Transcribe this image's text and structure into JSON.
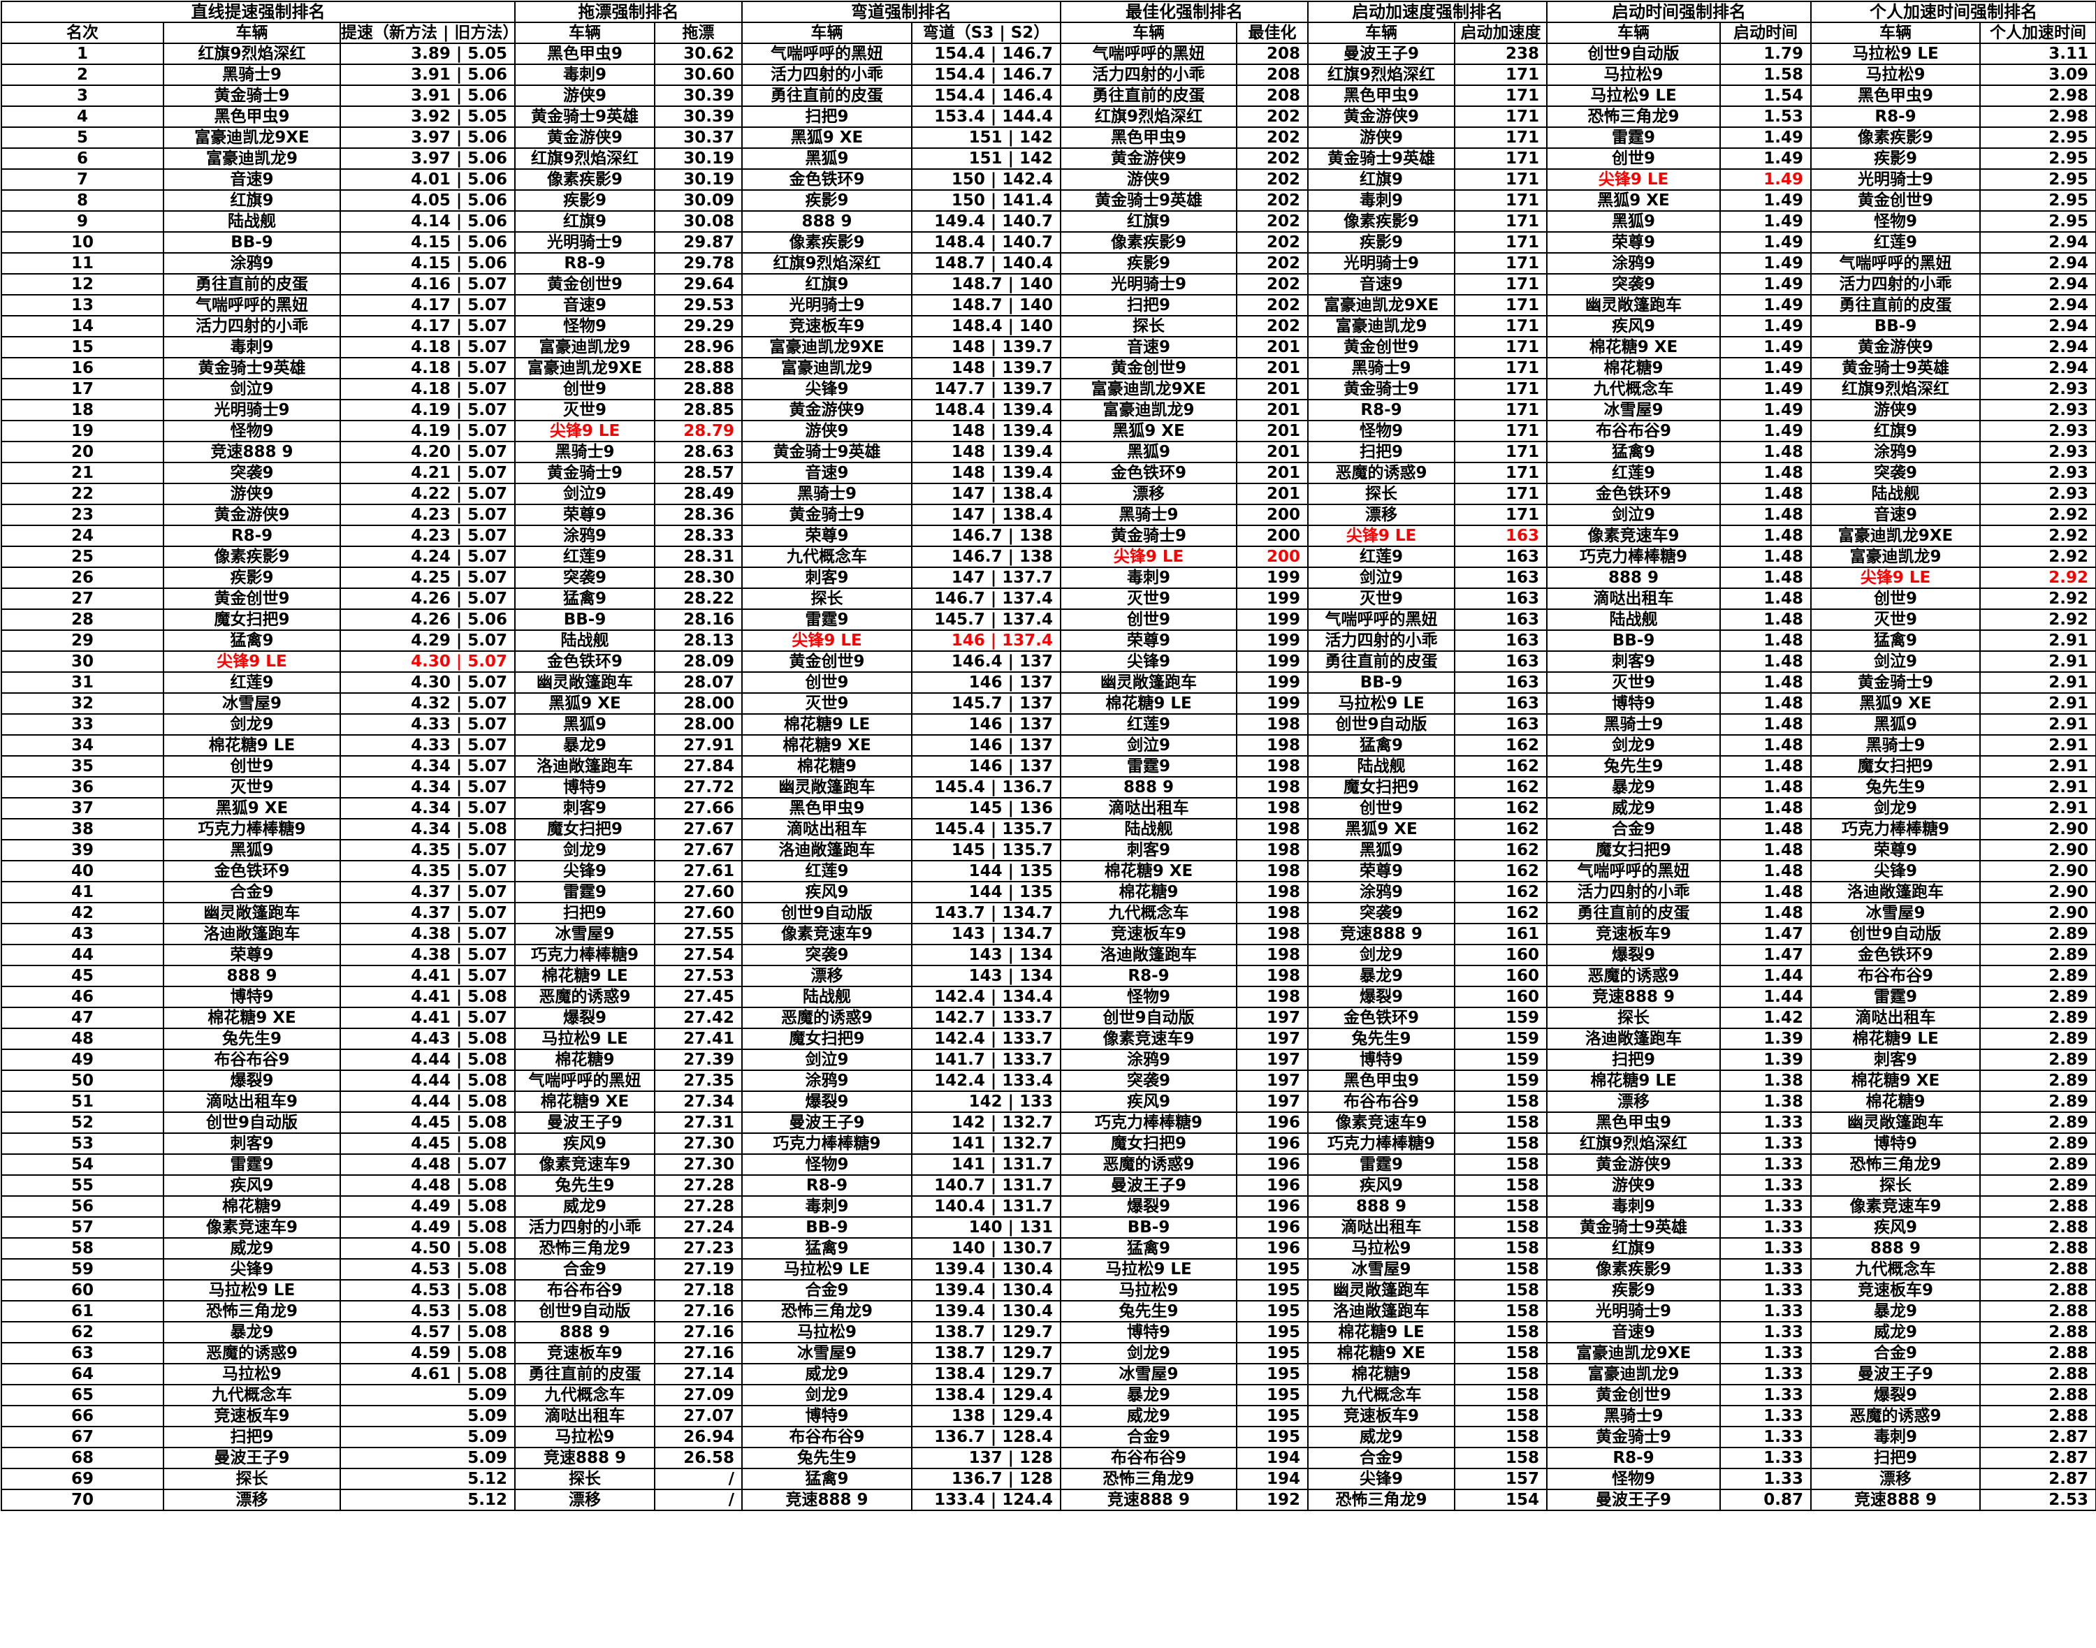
{
  "groups": [
    "直线提速强制排名",
    "拖漂强制排名",
    "弯道强制排名",
    "最佳化强制排名",
    "启动加速度强制排名",
    "启动时间强制排名",
    "个人加速时间强制排名"
  ],
  "headers": [
    "名次",
    "车辆",
    "提速（新方法 | 旧方法）",
    "车辆",
    "拖漂",
    "车辆",
    "弯道（S3 | S2）",
    "车辆",
    "最佳化",
    "车辆",
    "启动加速度",
    "车辆",
    "启动时间",
    "车辆",
    "个人加速时间"
  ],
  "highlight_color": "#ff0000",
  "rows": [
    [
      "1",
      "红旗9烈焰深红",
      "3.89 | 5.05",
      "黑色甲虫9",
      "30.62",
      "气喘呼呼的黑妞",
      "154.4 | 146.7",
      "气喘呼呼的黑妞",
      "208",
      "曼波王子9",
      "238",
      "创世9自动版",
      "1.79",
      "马拉松9 LE",
      "3.11"
    ],
    [
      "2",
      "黑骑士9",
      "3.91 | 5.06",
      "毒刺9",
      "30.60",
      "活力四射的小乖",
      "154.4 | 146.7",
      "活力四射的小乖",
      "208",
      "红旗9烈焰深红",
      "171",
      "马拉松9",
      "1.58",
      "马拉松9",
      "3.09"
    ],
    [
      "3",
      "黄金骑士9",
      "3.91 | 5.06",
      "游侠9",
      "30.39",
      "勇往直前的皮蛋",
      "154.4 | 146.4",
      "勇往直前的皮蛋",
      "208",
      "黑色甲虫9",
      "171",
      "马拉松9 LE",
      "1.54",
      "黑色甲虫9",
      "2.98"
    ],
    [
      "4",
      "黑色甲虫9",
      "3.92 | 5.05",
      "黄金骑士9英雄",
      "30.39",
      "扫把9",
      "153.4 | 144.4",
      "红旗9烈焰深红",
      "202",
      "黄金游侠9",
      "171",
      "恐怖三角龙9",
      "1.53",
      "R8-9",
      "2.98"
    ],
    [
      "5",
      "富豪迪凯龙9XE",
      "3.97 | 5.06",
      "黄金游侠9",
      "30.37",
      "黑狐9 XE",
      "151 | 142",
      "黑色甲虫9",
      "202",
      "游侠9",
      "171",
      "雷霆9",
      "1.49",
      "像素疾影9",
      "2.95"
    ],
    [
      "6",
      "富豪迪凯龙9",
      "3.97 | 5.06",
      "红旗9烈焰深红",
      "30.19",
      "黑狐9",
      "151 | 142",
      "黄金游侠9",
      "202",
      "黄金骑士9英雄",
      "171",
      "创世9",
      "1.49",
      "疾影9",
      "2.95"
    ],
    [
      "7",
      "音速9",
      "4.01 | 5.06",
      "像素疾影9",
      "30.19",
      "金色铁环9",
      "150 | 142.4",
      "游侠9",
      "202",
      "红旗9",
      "171",
      "尖锋9 LE",
      "1.49",
      "光明骑士9",
      "2.95"
    ],
    [
      "8",
      "红旗9",
      "4.05 | 5.06",
      "疾影9",
      "30.09",
      "疾影9",
      "150 | 141.4",
      "黄金骑士9英雄",
      "202",
      "毒刺9",
      "171",
      "黑狐9 XE",
      "1.49",
      "黄金创世9",
      "2.95"
    ],
    [
      "9",
      "陆战舰",
      "4.14 | 5.06",
      "红旗9",
      "30.08",
      "888 9",
      "149.4 | 140.7",
      "红旗9",
      "202",
      "像素疾影9",
      "171",
      "黑狐9",
      "1.49",
      "怪物9",
      "2.95"
    ],
    [
      "10",
      "BB-9",
      "4.15 | 5.06",
      "光明骑士9",
      "29.87",
      "像素疾影9",
      "148.4 | 140.7",
      "像素疾影9",
      "202",
      "疾影9",
      "171",
      "荣尊9",
      "1.49",
      "红莲9",
      "2.94"
    ],
    [
      "11",
      "涂鸦9",
      "4.15 | 5.06",
      "R8-9",
      "29.78",
      "红旗9烈焰深红",
      "148.7 | 140.4",
      "疾影9",
      "202",
      "光明骑士9",
      "171",
      "涂鸦9",
      "1.49",
      "气喘呼呼的黑妞",
      "2.94"
    ],
    [
      "12",
      "勇往直前的皮蛋",
      "4.16 | 5.07",
      "黄金创世9",
      "29.64",
      "红旗9",
      "148.7 | 140",
      "光明骑士9",
      "202",
      "音速9",
      "171",
      "突袭9",
      "1.49",
      "活力四射的小乖",
      "2.94"
    ],
    [
      "13",
      "气喘呼呼的黑妞",
      "4.17 | 5.07",
      "音速9",
      "29.53",
      "光明骑士9",
      "148.7 | 140",
      "扫把9",
      "202",
      "富豪迪凯龙9XE",
      "171",
      "幽灵敞篷跑车",
      "1.49",
      "勇往直前的皮蛋",
      "2.94"
    ],
    [
      "14",
      "活力四射的小乖",
      "4.17 | 5.07",
      "怪物9",
      "29.29",
      "竞速板车9",
      "148.4 | 140",
      "探长",
      "202",
      "富豪迪凯龙9",
      "171",
      "疾风9",
      "1.49",
      "BB-9",
      "2.94"
    ],
    [
      "15",
      "毒刺9",
      "4.18 | 5.07",
      "富豪迪凯龙9",
      "28.96",
      "富豪迪凯龙9XE",
      "148 | 139.7",
      "音速9",
      "201",
      "黄金创世9",
      "171",
      "棉花糖9 XE",
      "1.49",
      "黄金游侠9",
      "2.94"
    ],
    [
      "16",
      "黄金骑士9英雄",
      "4.18 | 5.07",
      "富豪迪凯龙9XE",
      "28.88",
      "富豪迪凯龙9",
      "148 | 139.7",
      "黄金创世9",
      "201",
      "黑骑士9",
      "171",
      "棉花糖9",
      "1.49",
      "黄金骑士9英雄",
      "2.94"
    ],
    [
      "17",
      "剑泣9",
      "4.18 | 5.07",
      "创世9",
      "28.88",
      "尖锋9",
      "147.7 | 139.7",
      "富豪迪凯龙9XE",
      "201",
      "黄金骑士9",
      "171",
      "九代概念车",
      "1.49",
      "红旗9烈焰深红",
      "2.93"
    ],
    [
      "18",
      "光明骑士9",
      "4.19 | 5.07",
      "灭世9",
      "28.85",
      "黄金游侠9",
      "148.4 | 139.4",
      "富豪迪凯龙9",
      "201",
      "R8-9",
      "171",
      "冰雪屋9",
      "1.49",
      "游侠9",
      "2.93"
    ],
    [
      "19",
      "怪物9",
      "4.19 | 5.07",
      "尖锋9 LE",
      "28.79",
      "游侠9",
      "148 | 139.4",
      "黑狐9 XE",
      "201",
      "怪物9",
      "171",
      "布谷布谷9",
      "1.49",
      "红旗9",
      "2.93"
    ],
    [
      "20",
      "竞速888 9",
      "4.20 | 5.07",
      "黑骑士9",
      "28.63",
      "黄金骑士9英雄",
      "148 | 139.4",
      "黑狐9",
      "201",
      "扫把9",
      "171",
      "猛禽9",
      "1.48",
      "涂鸦9",
      "2.93"
    ],
    [
      "21",
      "突袭9",
      "4.21 | 5.07",
      "黄金骑士9",
      "28.57",
      "音速9",
      "148 | 139.4",
      "金色铁环9",
      "201",
      "恶魔的诱惑9",
      "171",
      "红莲9",
      "1.48",
      "突袭9",
      "2.93"
    ],
    [
      "22",
      "游侠9",
      "4.22 | 5.07",
      "剑泣9",
      "28.49",
      "黑骑士9",
      "147 | 138.4",
      "漂移",
      "201",
      "探长",
      "171",
      "金色铁环9",
      "1.48",
      "陆战舰",
      "2.93"
    ],
    [
      "23",
      "黄金游侠9",
      "4.23 | 5.07",
      "荣尊9",
      "28.36",
      "黄金骑士9",
      "147 | 138.4",
      "黑骑士9",
      "200",
      "漂移",
      "171",
      "剑泣9",
      "1.48",
      "音速9",
      "2.92"
    ],
    [
      "24",
      "R8-9",
      "4.23 | 5.07",
      "涂鸦9",
      "28.33",
      "荣尊9",
      "146.7 | 138",
      "黄金骑士9",
      "200",
      "尖锋9 LE",
      "163",
      "像素竞速车9",
      "1.48",
      "富豪迪凯龙9XE",
      "2.92"
    ],
    [
      "25",
      "像素疾影9",
      "4.24 | 5.07",
      "红莲9",
      "28.31",
      "九代概念车",
      "146.7 | 138",
      "尖锋9 LE",
      "200",
      "红莲9",
      "163",
      "巧克力棒棒糖9",
      "1.48",
      "富豪迪凯龙9",
      "2.92"
    ],
    [
      "26",
      "疾影9",
      "4.25 | 5.07",
      "突袭9",
      "28.30",
      "刺客9",
      "147 | 137.7",
      "毒刺9",
      "199",
      "剑泣9",
      "163",
      "888 9",
      "1.48",
      "尖锋9 LE",
      "2.92"
    ],
    [
      "27",
      "黄金创世9",
      "4.26 | 5.07",
      "猛禽9",
      "28.22",
      "探长",
      "146.7 | 137.4",
      "灭世9",
      "199",
      "灭世9",
      "163",
      "滴哒出租车",
      "1.48",
      "创世9",
      "2.92"
    ],
    [
      "28",
      "魔女扫把9",
      "4.26 | 5.06",
      "BB-9",
      "28.16",
      "雷霆9",
      "145.7 | 137.4",
      "创世9",
      "199",
      "气喘呼呼的黑妞",
      "163",
      "陆战舰",
      "1.48",
      "灭世9",
      "2.92"
    ],
    [
      "29",
      "猛禽9",
      "4.29 | 5.07",
      "陆战舰",
      "28.13",
      "尖锋9 LE",
      "146 | 137.4",
      "荣尊9",
      "199",
      "活力四射的小乖",
      "163",
      "BB-9",
      "1.48",
      "猛禽9",
      "2.91"
    ],
    [
      "30",
      "尖锋9 LE",
      "4.30 | 5.07",
      "金色铁环9",
      "28.09",
      "黄金创世9",
      "146.4 | 137",
      "尖锋9",
      "199",
      "勇往直前的皮蛋",
      "163",
      "刺客9",
      "1.48",
      "剑泣9",
      "2.91"
    ],
    [
      "31",
      "红莲9",
      "4.30 | 5.07",
      "幽灵敞篷跑车",
      "28.07",
      "创世9",
      "146 | 137",
      "幽灵敞篷跑车",
      "199",
      "BB-9",
      "163",
      "灭世9",
      "1.48",
      "黄金骑士9",
      "2.91"
    ],
    [
      "32",
      "冰雪屋9",
      "4.32 | 5.07",
      "黑狐9 XE",
      "28.00",
      "灭世9",
      "145.7 | 137",
      "棉花糖9 LE",
      "199",
      "马拉松9 LE",
      "163",
      "博特9",
      "1.48",
      "黑狐9 XE",
      "2.91"
    ],
    [
      "33",
      "剑龙9",
      "4.33 | 5.07",
      "黑狐9",
      "28.00",
      "棉花糖9 LE",
      "146 | 137",
      "红莲9",
      "198",
      "创世9自动版",
      "163",
      "黑骑士9",
      "1.48",
      "黑狐9",
      "2.91"
    ],
    [
      "34",
      "棉花糖9 LE",
      "4.33 | 5.07",
      "暴龙9",
      "27.91",
      "棉花糖9 XE",
      "146 | 137",
      "剑泣9",
      "198",
      "猛禽9",
      "162",
      "剑龙9",
      "1.48",
      "黑骑士9",
      "2.91"
    ],
    [
      "35",
      "创世9",
      "4.34 | 5.07",
      "洛迪敞篷跑车",
      "27.84",
      "棉花糖9",
      "146 | 137",
      "雷霆9",
      "198",
      "陆战舰",
      "162",
      "兔先生9",
      "1.48",
      "魔女扫把9",
      "2.91"
    ],
    [
      "36",
      "灭世9",
      "4.34 | 5.07",
      "博特9",
      "27.72",
      "幽灵敞篷跑车",
      "145.4 | 136.7",
      "888 9",
      "198",
      "魔女扫把9",
      "162",
      "暴龙9",
      "1.48",
      "兔先生9",
      "2.91"
    ],
    [
      "37",
      "黑狐9 XE",
      "4.34 | 5.07",
      "刺客9",
      "27.66",
      "黑色甲虫9",
      "145 | 136",
      "滴哒出租车",
      "198",
      "创世9",
      "162",
      "威龙9",
      "1.48",
      "剑龙9",
      "2.91"
    ],
    [
      "38",
      "巧克力棒棒糖9",
      "4.34 | 5.08",
      "魔女扫把9",
      "27.67",
      "滴哒出租车",
      "145.4 | 135.7",
      "陆战舰",
      "198",
      "黑狐9 XE",
      "162",
      "合金9",
      "1.48",
      "巧克力棒棒糖9",
      "2.90"
    ],
    [
      "39",
      "黑狐9",
      "4.35 | 5.07",
      "剑龙9",
      "27.67",
      "洛迪敞篷跑车",
      "145 | 135.7",
      "刺客9",
      "198",
      "黑狐9",
      "162",
      "魔女扫把9",
      "1.48",
      "荣尊9",
      "2.90"
    ],
    [
      "40",
      "金色铁环9",
      "4.35 | 5.07",
      "尖锋9",
      "27.61",
      "红莲9",
      "144 | 135",
      "棉花糖9 XE",
      "198",
      "荣尊9",
      "162",
      "气喘呼呼的黑妞",
      "1.48",
      "尖锋9",
      "2.90"
    ],
    [
      "41",
      "合金9",
      "4.37 | 5.07",
      "雷霆9",
      "27.60",
      "疾风9",
      "144 | 135",
      "棉花糖9",
      "198",
      "涂鸦9",
      "162",
      "活力四射的小乖",
      "1.48",
      "洛迪敞篷跑车",
      "2.90"
    ],
    [
      "42",
      "幽灵敞篷跑车",
      "4.37 | 5.07",
      "扫把9",
      "27.60",
      "创世9自动版",
      "143.7 | 134.7",
      "九代概念车",
      "198",
      "突袭9",
      "162",
      "勇往直前的皮蛋",
      "1.48",
      "冰雪屋9",
      "2.90"
    ],
    [
      "43",
      "洛迪敞篷跑车",
      "4.38 | 5.07",
      "冰雪屋9",
      "27.55",
      "像素竞速车9",
      "143 | 134.7",
      "竞速板车9",
      "198",
      "竞速888 9",
      "161",
      "竞速板车9",
      "1.47",
      "创世9自动版",
      "2.89"
    ],
    [
      "44",
      "荣尊9",
      "4.38 | 5.07",
      "巧克力棒棒糖9",
      "27.54",
      "突袭9",
      "143 | 134",
      "洛迪敞篷跑车",
      "198",
      "剑龙9",
      "160",
      "爆裂9",
      "1.47",
      "金色铁环9",
      "2.89"
    ],
    [
      "45",
      "888 9",
      "4.41 | 5.07",
      "棉花糖9 LE",
      "27.53",
      "漂移",
      "143 | 134",
      "R8-9",
      "198",
      "暴龙9",
      "160",
      "恶魔的诱惑9",
      "1.44",
      "布谷布谷9",
      "2.89"
    ],
    [
      "46",
      "博特9",
      "4.41 | 5.08",
      "恶魔的诱惑9",
      "27.45",
      "陆战舰",
      "142.4 | 134.4",
      "怪物9",
      "198",
      "爆裂9",
      "160",
      "竞速888 9",
      "1.44",
      "雷霆9",
      "2.89"
    ],
    [
      "47",
      "棉花糖9 XE",
      "4.41 | 5.07",
      "爆裂9",
      "27.42",
      "恶魔的诱惑9",
      "142.7 | 133.7",
      "创世9自动版",
      "197",
      "金色铁环9",
      "159",
      "探长",
      "1.42",
      "滴哒出租车",
      "2.89"
    ],
    [
      "48",
      "兔先生9",
      "4.43 | 5.08",
      "马拉松9 LE",
      "27.41",
      "魔女扫把9",
      "142.4 | 133.7",
      "像素竞速车9",
      "197",
      "兔先生9",
      "159",
      "洛迪敞篷跑车",
      "1.39",
      "棉花糖9 LE",
      "2.89"
    ],
    [
      "49",
      "布谷布谷9",
      "4.44 | 5.08",
      "棉花糖9",
      "27.39",
      "剑泣9",
      "141.7 | 133.7",
      "涂鸦9",
      "197",
      "博特9",
      "159",
      "扫把9",
      "1.39",
      "刺客9",
      "2.89"
    ],
    [
      "50",
      "爆裂9",
      "4.44 | 5.08",
      "气喘呼呼的黑妞",
      "27.35",
      "涂鸦9",
      "142.4 | 133.4",
      "突袭9",
      "197",
      "黑色甲虫9",
      "159",
      "棉花糖9 LE",
      "1.38",
      "棉花糖9 XE",
      "2.89"
    ],
    [
      "51",
      "滴哒出租车9",
      "4.44 | 5.08",
      "棉花糖9 XE",
      "27.34",
      "爆裂9",
      "142 | 133",
      "疾风9",
      "197",
      "布谷布谷9",
      "158",
      "漂移",
      "1.38",
      "棉花糖9",
      "2.89"
    ],
    [
      "52",
      "创世9自动版",
      "4.45 | 5.08",
      "曼波王子9",
      "27.31",
      "曼波王子9",
      "142 | 132.7",
      "巧克力棒棒糖9",
      "196",
      "像素竞速车9",
      "158",
      "黑色甲虫9",
      "1.33",
      "幽灵敞篷跑车",
      "2.89"
    ],
    [
      "53",
      "刺客9",
      "4.45 | 5.08",
      "疾风9",
      "27.30",
      "巧克力棒棒糖9",
      "141 | 132.7",
      "魔女扫把9",
      "196",
      "巧克力棒棒糖9",
      "158",
      "红旗9烈焰深红",
      "1.33",
      "博特9",
      "2.89"
    ],
    [
      "54",
      "雷霆9",
      "4.48 | 5.07",
      "像素竞速车9",
      "27.30",
      "怪物9",
      "141 | 131.7",
      "恶魔的诱惑9",
      "196",
      "雷霆9",
      "158",
      "黄金游侠9",
      "1.33",
      "恐怖三角龙9",
      "2.89"
    ],
    [
      "55",
      "疾风9",
      "4.48 | 5.08",
      "兔先生9",
      "27.28",
      "R8-9",
      "140.7 | 131.7",
      "曼波王子9",
      "196",
      "疾风9",
      "158",
      "游侠9",
      "1.33",
      "探长",
      "2.89"
    ],
    [
      "56",
      "棉花糖9",
      "4.49 | 5.08",
      "威龙9",
      "27.28",
      "毒刺9",
      "140.4 | 131.7",
      "爆裂9",
      "196",
      "888 9",
      "158",
      "毒刺9",
      "1.33",
      "像素竞速车9",
      "2.88"
    ],
    [
      "57",
      "像素竞速车9",
      "4.49 | 5.08",
      "活力四射的小乖",
      "27.24",
      "BB-9",
      "140 | 131",
      "BB-9",
      "196",
      "滴哒出租车",
      "158",
      "黄金骑士9英雄",
      "1.33",
      "疾风9",
      "2.88"
    ],
    [
      "58",
      "威龙9",
      "4.50 | 5.08",
      "恐怖三角龙9",
      "27.23",
      "猛禽9",
      "140 | 130.7",
      "猛禽9",
      "196",
      "马拉松9",
      "158",
      "红旗9",
      "1.33",
      "888 9",
      "2.88"
    ],
    [
      "59",
      "尖锋9",
      "4.53 | 5.08",
      "合金9",
      "27.19",
      "马拉松9 LE",
      "139.4 | 130.4",
      "马拉松9 LE",
      "195",
      "冰雪屋9",
      "158",
      "像素疾影9",
      "1.33",
      "九代概念车",
      "2.88"
    ],
    [
      "60",
      "马拉松9 LE",
      "4.53 | 5.08",
      "布谷布谷9",
      "27.18",
      "合金9",
      "139.4 | 130.4",
      "马拉松9",
      "195",
      "幽灵敞篷跑车",
      "158",
      "疾影9",
      "1.33",
      "竞速板车9",
      "2.88"
    ],
    [
      "61",
      "恐怖三角龙9",
      "4.53 | 5.08",
      "创世9自动版",
      "27.16",
      "恐怖三角龙9",
      "139.4 | 130.4",
      "兔先生9",
      "195",
      "洛迪敞篷跑车",
      "158",
      "光明骑士9",
      "1.33",
      "暴龙9",
      "2.88"
    ],
    [
      "62",
      "暴龙9",
      "4.57 | 5.08",
      "888 9",
      "27.16",
      "马拉松9",
      "138.7 | 129.7",
      "博特9",
      "195",
      "棉花糖9 LE",
      "158",
      "音速9",
      "1.33",
      "威龙9",
      "2.88"
    ],
    [
      "63",
      "恶魔的诱惑9",
      "4.59 | 5.08",
      "竞速板车9",
      "27.16",
      "冰雪屋9",
      "138.7 | 129.7",
      "剑龙9",
      "195",
      "棉花糖9 XE",
      "158",
      "富豪迪凯龙9XE",
      "1.33",
      "合金9",
      "2.88"
    ],
    [
      "64",
      "马拉松9",
      "4.61 | 5.08",
      "勇往直前的皮蛋",
      "27.14",
      "威龙9",
      "138.4 | 129.7",
      "冰雪屋9",
      "195",
      "棉花糖9",
      "158",
      "富豪迪凯龙9",
      "1.33",
      "曼波王子9",
      "2.88"
    ],
    [
      "65",
      "九代概念车",
      "5.09",
      "九代概念车",
      "27.09",
      "剑龙9",
      "138.4 | 129.4",
      "暴龙9",
      "195",
      "九代概念车",
      "158",
      "黄金创世9",
      "1.33",
      "爆裂9",
      "2.88"
    ],
    [
      "66",
      "竞速板车9",
      "5.09",
      "滴哒出租车",
      "27.07",
      "博特9",
      "138 | 129.4",
      "威龙9",
      "195",
      "竞速板车9",
      "158",
      "黑骑士9",
      "1.33",
      "恶魔的诱惑9",
      "2.88"
    ],
    [
      "67",
      "扫把9",
      "5.09",
      "马拉松9",
      "26.94",
      "布谷布谷9",
      "136.7 | 128.4",
      "合金9",
      "195",
      "威龙9",
      "158",
      "黄金骑士9",
      "1.33",
      "毒刺9",
      "2.87"
    ],
    [
      "68",
      "曼波王子9",
      "5.09",
      "竞速888 9",
      "26.58",
      "兔先生9",
      "137 | 128",
      "布谷布谷9",
      "194",
      "合金9",
      "158",
      "R8-9",
      "1.33",
      "扫把9",
      "2.87"
    ],
    [
      "69",
      "探长",
      "5.12",
      "探长",
      "/",
      "猛禽9",
      "136.7 | 128",
      "恐怖三角龙9",
      "194",
      "尖锋9",
      "157",
      "怪物9",
      "1.33",
      "漂移",
      "2.87"
    ],
    [
      "70",
      "漂移",
      "5.12",
      "漂移",
      "/",
      "竞速888 9",
      "133.4 | 124.4",
      "竞速888 9",
      "192",
      "恐怖三角龙9",
      "154",
      "曼波王子9",
      "0.87",
      "竞速888 9",
      "2.53"
    ]
  ]
}
